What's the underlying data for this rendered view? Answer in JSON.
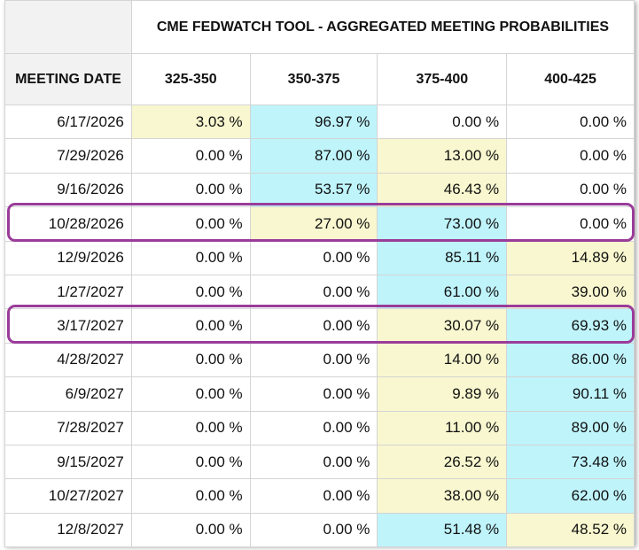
{
  "title": "CME FEDWATCH TOOL - AGGREGATED MEETING PROBABILITIES",
  "columns": [
    "MEETING DATE",
    "325-350",
    "350-375",
    "375-400",
    "400-425"
  ],
  "rows": [
    {
      "date": "6/17/2026",
      "values": [
        "3.03 %",
        "96.97 %",
        "0.00 %",
        "0.00 %"
      ],
      "shade": [
        "y",
        "b",
        "w",
        "w"
      ]
    },
    {
      "date": "7/29/2026",
      "values": [
        "0.00 %",
        "87.00 %",
        "13.00 %",
        "0.00 %"
      ],
      "shade": [
        "w",
        "b",
        "y",
        "w"
      ]
    },
    {
      "date": "9/16/2026",
      "values": [
        "0.00 %",
        "53.57 %",
        "46.43 %",
        "0.00 %"
      ],
      "shade": [
        "w",
        "b",
        "y",
        "w"
      ]
    },
    {
      "date": "10/28/2026",
      "values": [
        "0.00 %",
        "27.00 %",
        "73.00 %",
        "0.00 %"
      ],
      "shade": [
        "w",
        "y",
        "b",
        "w"
      ]
    },
    {
      "date": "12/9/2026",
      "values": [
        "0.00 %",
        "0.00 %",
        "85.11 %",
        "14.89 %"
      ],
      "shade": [
        "w",
        "w",
        "b",
        "y"
      ]
    },
    {
      "date": "1/27/2027",
      "values": [
        "0.00 %",
        "0.00 %",
        "61.00 %",
        "39.00 %"
      ],
      "shade": [
        "w",
        "w",
        "b",
        "y"
      ]
    },
    {
      "date": "3/17/2027",
      "values": [
        "0.00 %",
        "0.00 %",
        "30.07 %",
        "69.93 %"
      ],
      "shade": [
        "w",
        "w",
        "y",
        "b"
      ]
    },
    {
      "date": "4/28/2027",
      "values": [
        "0.00 %",
        "0.00 %",
        "14.00 %",
        "86.00 %"
      ],
      "shade": [
        "w",
        "w",
        "y",
        "b"
      ]
    },
    {
      "date": "6/9/2027",
      "values": [
        "0.00 %",
        "0.00 %",
        "9.89 %",
        "90.11 %"
      ],
      "shade": [
        "w",
        "w",
        "y",
        "b"
      ]
    },
    {
      "date": "7/28/2027",
      "values": [
        "0.00 %",
        "0.00 %",
        "11.00 %",
        "89.00 %"
      ],
      "shade": [
        "w",
        "w",
        "y",
        "b"
      ]
    },
    {
      "date": "9/15/2027",
      "values": [
        "0.00 %",
        "0.00 %",
        "26.52 %",
        "73.48 %"
      ],
      "shade": [
        "w",
        "w",
        "y",
        "b"
      ]
    },
    {
      "date": "10/27/2027",
      "values": [
        "0.00 %",
        "0.00 %",
        "38.00 %",
        "62.00 %"
      ],
      "shade": [
        "w",
        "w",
        "y",
        "b"
      ]
    },
    {
      "date": "12/8/2027",
      "values": [
        "0.00 %",
        "0.00 %",
        "51.48 %",
        "48.52 %"
      ],
      "shade": [
        "w",
        "w",
        "b",
        "y"
      ]
    }
  ],
  "highlighted_rows": [
    "10/28/2026",
    "3/17/2027"
  ],
  "colors": {
    "low_prob": "#f8f7cf",
    "high_prob": "#bff4fb",
    "highlight_ring": "#9a3c9a"
  }
}
